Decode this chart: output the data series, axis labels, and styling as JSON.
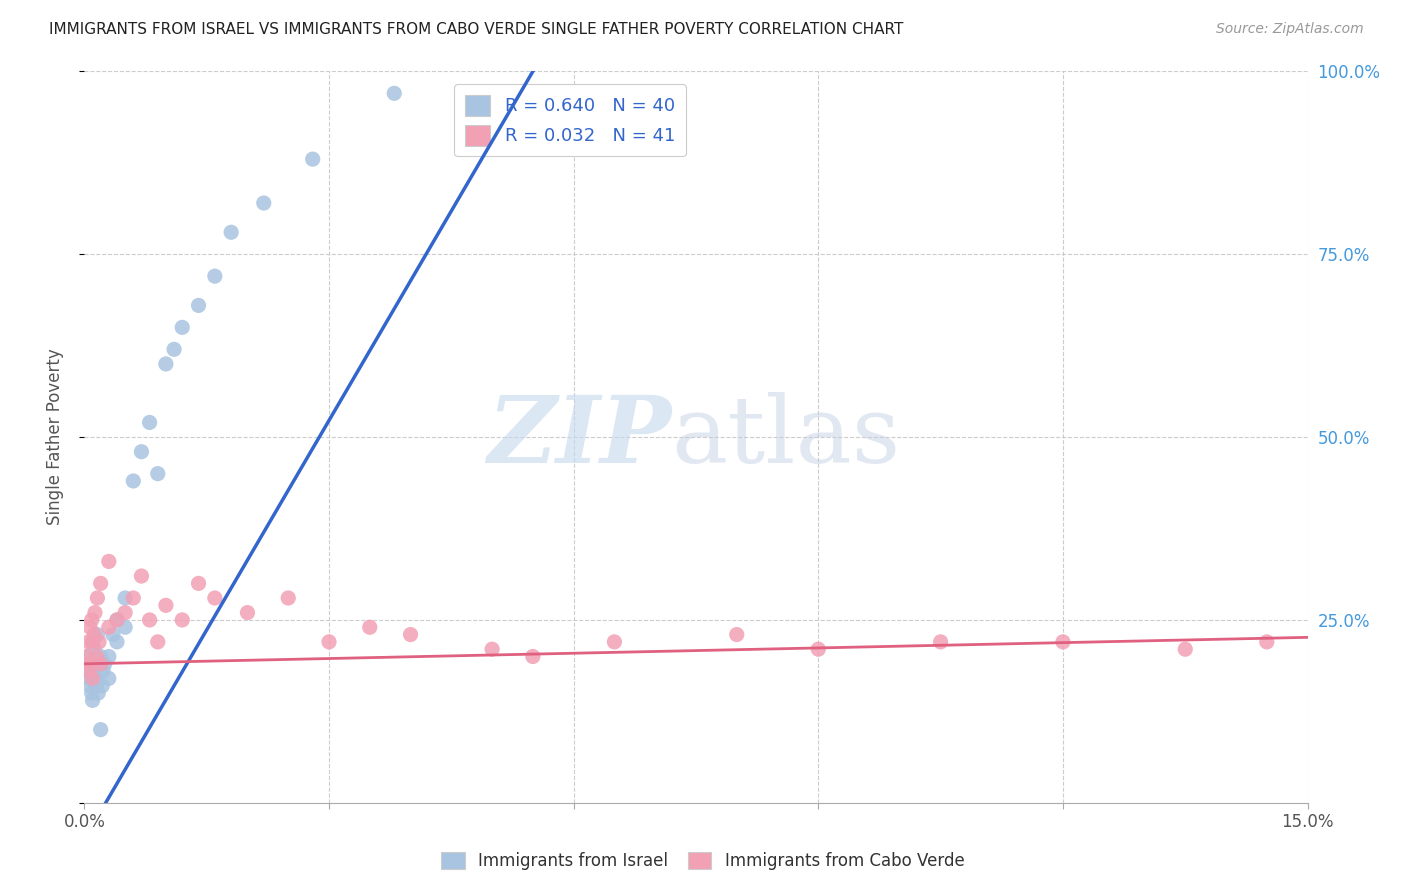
{
  "title": "IMMIGRANTS FROM ISRAEL VS IMMIGRANTS FROM CABO VERDE SINGLE FATHER POVERTY CORRELATION CHART",
  "source": "Source: ZipAtlas.com",
  "ylabel": "Single Father Poverty",
  "xlim": [
    0,
    0.15
  ],
  "ylim": [
    0,
    1.0
  ],
  "israel_R": 0.64,
  "israel_N": 40,
  "caboverde_R": 0.032,
  "caboverde_N": 41,
  "israel_color": "#a8c4e0",
  "caboverde_color": "#f2a0b4",
  "israel_line_color": "#3366cc",
  "caboverde_line_color": "#e06080",
  "legend_label_israel": "Immigrants from Israel",
  "legend_label_caboverde": "Immigrants from Cabo Verde",
  "israel_x": [
    0.0003,
    0.0005,
    0.0006,
    0.0007,
    0.0008,
    0.0009,
    0.001,
    0.001,
    0.0012,
    0.0013,
    0.0014,
    0.0015,
    0.0016,
    0.0017,
    0.0018,
    0.002,
    0.002,
    0.0022,
    0.0023,
    0.0025,
    0.003,
    0.003,
    0.0035,
    0.004,
    0.004,
    0.005,
    0.005,
    0.006,
    0.007,
    0.008,
    0.009,
    0.01,
    0.011,
    0.012,
    0.014,
    0.016,
    0.018,
    0.022,
    0.028,
    0.038
  ],
  "israel_y": [
    0.18,
    0.2,
    0.17,
    0.16,
    0.19,
    0.15,
    0.22,
    0.14,
    0.21,
    0.17,
    0.18,
    0.16,
    0.23,
    0.15,
    0.19,
    0.1,
    0.2,
    0.16,
    0.18,
    0.19,
    0.2,
    0.17,
    0.23,
    0.25,
    0.22,
    0.28,
    0.24,
    0.44,
    0.48,
    0.52,
    0.45,
    0.6,
    0.62,
    0.65,
    0.68,
    0.72,
    0.78,
    0.82,
    0.88,
    0.97
  ],
  "caboverde_x": [
    0.0003,
    0.0005,
    0.0006,
    0.0007,
    0.0008,
    0.0009,
    0.001,
    0.001,
    0.0012,
    0.0013,
    0.0015,
    0.0016,
    0.0018,
    0.002,
    0.002,
    0.003,
    0.003,
    0.004,
    0.005,
    0.006,
    0.007,
    0.008,
    0.009,
    0.01,
    0.012,
    0.014,
    0.016,
    0.02,
    0.025,
    0.03,
    0.035,
    0.04,
    0.05,
    0.055,
    0.065,
    0.08,
    0.09,
    0.105,
    0.12,
    0.135,
    0.145
  ],
  "caboverde_y": [
    0.2,
    0.22,
    0.18,
    0.24,
    0.19,
    0.25,
    0.22,
    0.17,
    0.23,
    0.26,
    0.2,
    0.28,
    0.22,
    0.3,
    0.19,
    0.24,
    0.33,
    0.25,
    0.26,
    0.28,
    0.31,
    0.25,
    0.22,
    0.27,
    0.25,
    0.3,
    0.28,
    0.26,
    0.28,
    0.22,
    0.24,
    0.23,
    0.21,
    0.2,
    0.22,
    0.23,
    0.21,
    0.22,
    0.22,
    0.21,
    0.22
  ],
  "watermark_zip": "ZIP",
  "watermark_atlas": "atlas",
  "background_color": "#ffffff",
  "grid_color": "#cccccc"
}
